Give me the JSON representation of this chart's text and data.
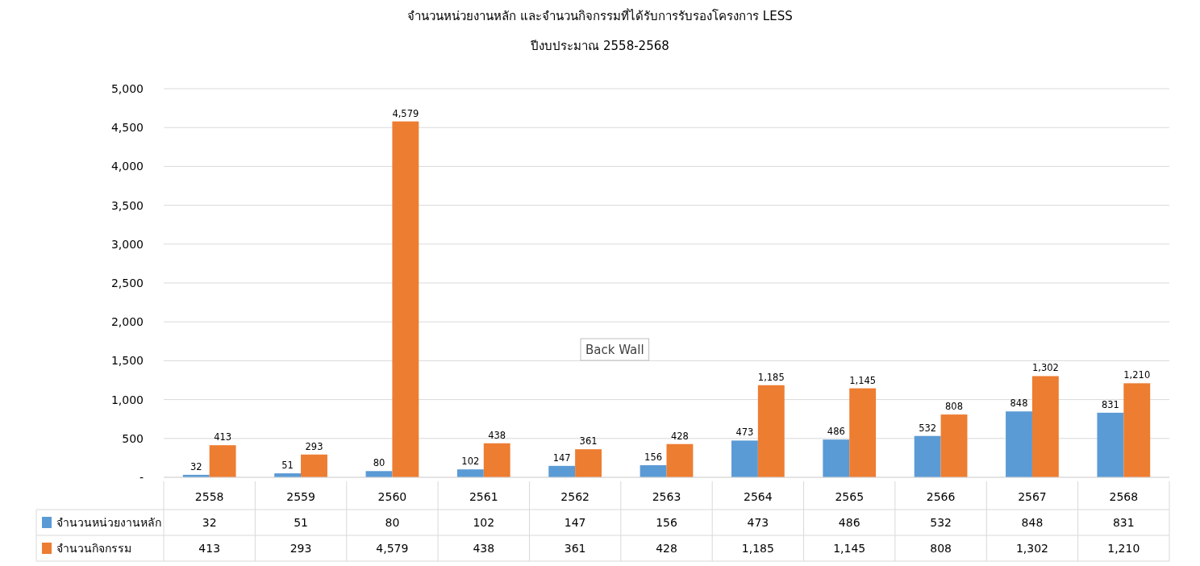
{
  "chart_data": {
    "type": "bar",
    "title": "จำนวนหน่วยงานหลัก และจำนวนกิจกรรมที่ได้รับการรับรองโครงการ LESS",
    "subtitle": "ปีงบประมาณ 2558-2568",
    "categories": [
      "2558",
      "2559",
      "2560",
      "2561",
      "2562",
      "2563",
      "2564",
      "2565",
      "2566",
      "2567",
      "2568"
    ],
    "series": [
      {
        "name": "จำนวนหน่วยงานหลัก",
        "color": "#5b9bd5",
        "values": [
          32,
          51,
          80,
          102,
          147,
          156,
          473,
          486,
          532,
          848,
          831
        ],
        "value_labels": [
          "32",
          "51",
          "80",
          "102",
          "147",
          "156",
          "473",
          "486",
          "532",
          "848",
          "831"
        ]
      },
      {
        "name": "จำนวนกิจกรรม",
        "color": "#ed7d31",
        "values": [
          413,
          293,
          4579,
          438,
          361,
          428,
          1185,
          1145,
          808,
          1302,
          1210
        ],
        "value_labels": [
          "413",
          "293",
          "4,579",
          "438",
          "361",
          "428",
          "1,185",
          "1,145",
          "808",
          "1,302",
          "1,210"
        ]
      }
    ],
    "ylim": [
      0,
      5000
    ],
    "yticks": [
      {
        "value": 0,
        "label": "-"
      },
      {
        "value": 500,
        "label": "500"
      },
      {
        "value": 1000,
        "label": "1,000"
      },
      {
        "value": 1500,
        "label": "1,500"
      },
      {
        "value": 2000,
        "label": "2,000"
      },
      {
        "value": 2500,
        "label": "2,500"
      },
      {
        "value": 3000,
        "label": "3,000"
      },
      {
        "value": 3500,
        "label": "3,500"
      },
      {
        "value": 4000,
        "label": "4,000"
      },
      {
        "value": 4500,
        "label": "4,500"
      },
      {
        "value": 5000,
        "label": "5,000"
      }
    ],
    "grid": "y",
    "legend": "bottom",
    "annotations": [
      "Back Wall"
    ]
  }
}
